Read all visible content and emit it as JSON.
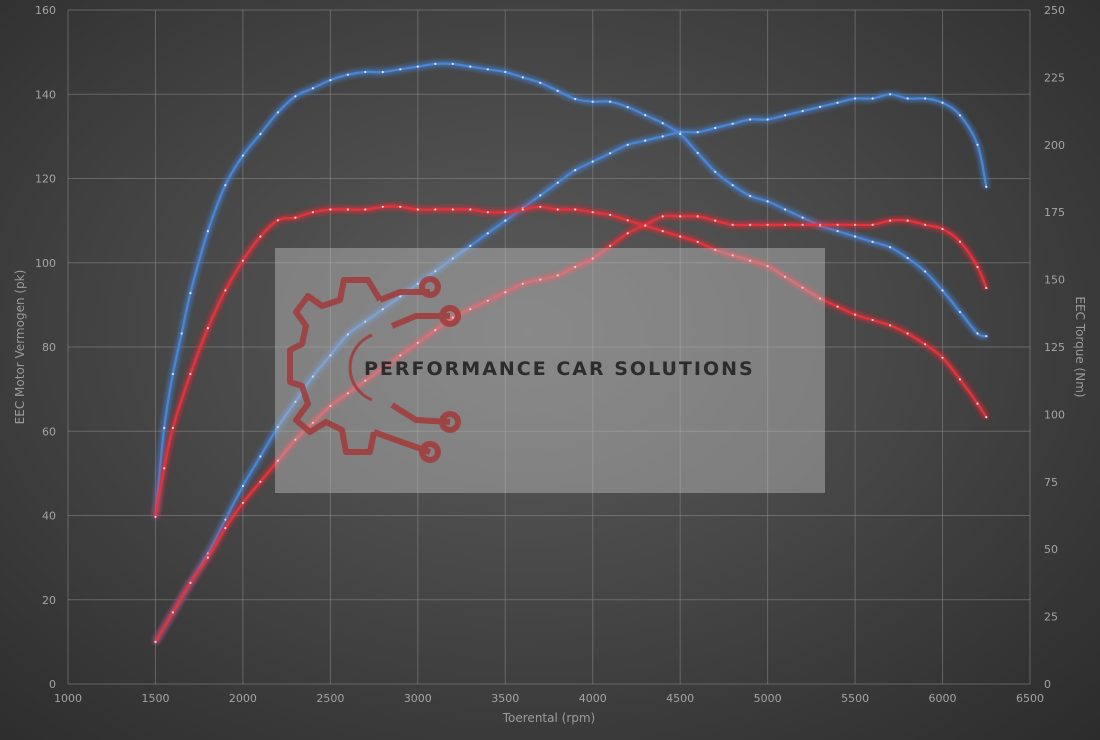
{
  "chart_data": {
    "type": "line",
    "xlabel": "Toerental (rpm)",
    "ylabel_left": "EEC Motor Vermogen (pk)",
    "ylabel_right": "EEC Torque (Nm)",
    "xlim": [
      1000,
      6500
    ],
    "ylim_left": [
      0,
      160
    ],
    "ylim_right": [
      0,
      250
    ],
    "x_ticks": [
      1000,
      1500,
      2000,
      2500,
      3000,
      3500,
      4000,
      4500,
      5000,
      5500,
      6000,
      6500
    ],
    "y_left_ticks": [
      0,
      20,
      40,
      60,
      80,
      100,
      120,
      140,
      160
    ],
    "y_right_ticks": [
      0,
      25,
      50,
      75,
      100,
      125,
      150,
      175,
      200,
      225,
      250
    ],
    "grid": true,
    "series": [
      {
        "color": "#4a86d8",
        "axis": "left",
        "x": [
          1500,
          1600,
          1700,
          1800,
          1900,
          2000,
          2100,
          2200,
          2300,
          2400,
          2500,
          2600,
          2700,
          2800,
          2900,
          3000,
          3100,
          3200,
          3300,
          3400,
          3500,
          3600,
          3700,
          3800,
          3900,
          4000,
          4100,
          4200,
          4300,
          4400,
          4500,
          4600,
          4700,
          4800,
          4900,
          5000,
          5100,
          5200,
          5300,
          5400,
          5500,
          5600,
          5700,
          5800,
          5900,
          6000,
          6100,
          6200,
          6250
        ],
        "y": [
          10,
          17,
          24,
          31,
          39,
          47,
          54,
          61,
          67,
          73,
          78,
          83,
          86,
          89,
          92,
          95,
          98,
          101,
          104,
          107,
          110,
          113,
          116,
          119,
          122,
          124,
          126,
          128,
          129,
          130,
          131,
          131,
          132,
          133,
          134,
          134,
          135,
          136,
          137,
          138,
          139,
          139,
          140,
          139,
          139,
          138,
          135,
          128,
          118
        ]
      },
      {
        "color": "#4a86d8",
        "axis": "right",
        "x": [
          1500,
          1550,
          1600,
          1650,
          1700,
          1800,
          1900,
          2000,
          2100,
          2200,
          2300,
          2400,
          2500,
          2600,
          2700,
          2800,
          2900,
          3000,
          3100,
          3200,
          3300,
          3400,
          3500,
          3600,
          3700,
          3800,
          3900,
          4000,
          4100,
          4200,
          4300,
          4400,
          4500,
          4600,
          4700,
          4800,
          4900,
          5000,
          5100,
          5200,
          5300,
          5400,
          5500,
          5600,
          5700,
          5800,
          5900,
          6000,
          6100,
          6200,
          6250
        ],
        "y": [
          62,
          95,
          115,
          130,
          145,
          168,
          185,
          196,
          204,
          212,
          218,
          221,
          224,
          226,
          227,
          227,
          228,
          229,
          230,
          230,
          229,
          228,
          227,
          225,
          223,
          220,
          217,
          216,
          216,
          214,
          211,
          208,
          204,
          197,
          190,
          185,
          181,
          179,
          176,
          173,
          170,
          168,
          166,
          164,
          162,
          158,
          153,
          146,
          138,
          130,
          129
        ]
      },
      {
        "color": "#e8323a",
        "axis": "left",
        "x": [
          1500,
          1600,
          1700,
          1800,
          1900,
          2000,
          2100,
          2200,
          2300,
          2400,
          2500,
          2600,
          2700,
          2800,
          2900,
          3000,
          3100,
          3200,
          3300,
          3400,
          3500,
          3600,
          3700,
          3800,
          3900,
          4000,
          4100,
          4200,
          4300,
          4400,
          4500,
          4600,
          4700,
          4800,
          4900,
          5000,
          5100,
          5200,
          5300,
          5400,
          5500,
          5600,
          5700,
          5800,
          5900,
          6000,
          6100,
          6200,
          6250
        ],
        "y": [
          10,
          17,
          24,
          30,
          37,
          43,
          48,
          53,
          58,
          62,
          66,
          69,
          72,
          75,
          78,
          81,
          84,
          87,
          89,
          91,
          93,
          95,
          96,
          97,
          99,
          101,
          104,
          107,
          109,
          111,
          111,
          111,
          110,
          109,
          109,
          109,
          109,
          109,
          109,
          109,
          109,
          109,
          110,
          110,
          109,
          108,
          105,
          99,
          94
        ]
      },
      {
        "color": "#e8323a",
        "axis": "right",
        "x": [
          1500,
          1550,
          1600,
          1700,
          1800,
          1900,
          2000,
          2100,
          2200,
          2300,
          2400,
          2500,
          2600,
          2700,
          2800,
          2900,
          3000,
          3100,
          3200,
          3300,
          3400,
          3500,
          3600,
          3700,
          3800,
          3900,
          4000,
          4100,
          4200,
          4300,
          4400,
          4500,
          4600,
          4700,
          4800,
          4900,
          5000,
          5100,
          5200,
          5300,
          5400,
          5500,
          5600,
          5700,
          5800,
          5900,
          6000,
          6100,
          6200,
          6250
        ],
        "y": [
          62,
          80,
          95,
          115,
          132,
          146,
          157,
          166,
          172,
          173,
          175,
          176,
          176,
          176,
          177,
          177,
          176,
          176,
          176,
          176,
          175,
          175,
          176,
          177,
          176,
          176,
          175,
          174,
          172,
          170,
          168,
          166,
          164,
          161,
          159,
          157,
          155,
          151,
          147,
          143,
          140,
          137,
          135,
          133,
          130,
          126,
          121,
          113,
          104,
          99
        ]
      }
    ]
  },
  "watermark": {
    "text": "PERFORMANCE CAR SOLUTIONS",
    "logo_icon": "gear-circuit-icon"
  }
}
